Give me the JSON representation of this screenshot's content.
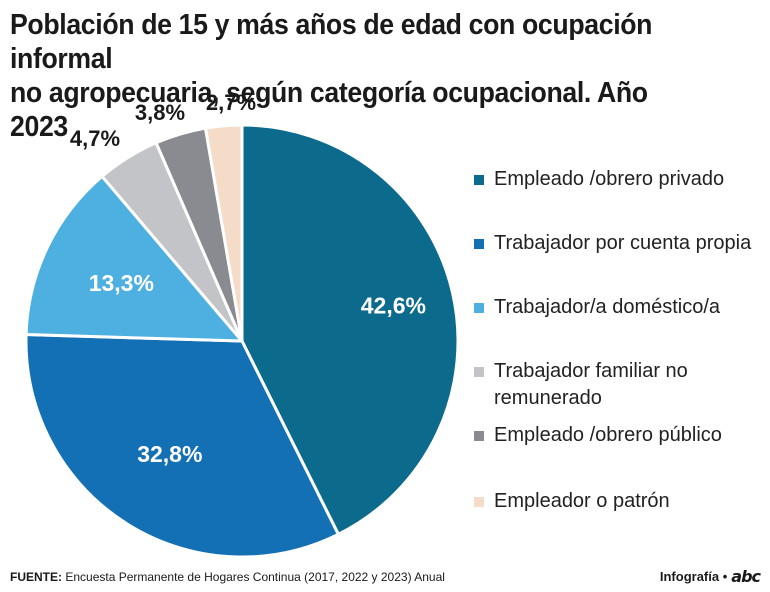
{
  "chart_data": {
    "type": "pie",
    "title_line1": "Población de 15 y más años de edad con ocupación informal",
    "title_line2": "no agropecuaria, según categoría ocupacional. Año 2023",
    "slices": [
      {
        "label": "Empleado /obrero privado",
        "value": 42.6,
        "text": "42,6%",
        "color": "#0c6a8c"
      },
      {
        "label": "Trabajador por cuenta propia",
        "value": 32.8,
        "text": "32,8%",
        "color": "#1470b4"
      },
      {
        "label": "Trabajador/a doméstico/a",
        "value": 13.3,
        "text": "13,3%",
        "color": "#4eb0e0"
      },
      {
        "label": "Trabajador familiar no remunerado",
        "value": 4.7,
        "text": "4,7%",
        "color": "#c3c4c8"
      },
      {
        "label": "Empleado /obrero público",
        "value": 3.8,
        "text": "3,8%",
        "color": "#8a8b90"
      },
      {
        "label": "Empleador o patrón",
        "value": 2.7,
        "text": "2,7%",
        "color": "#f5dcc8"
      }
    ]
  },
  "legend": {
    "items": [
      {
        "line1": "Empleado /obrero privado",
        "line2": ""
      },
      {
        "line1": "Trabajador por cuenta propia",
        "line2": ""
      },
      {
        "line1": "Trabajador/a doméstico/a",
        "line2": ""
      },
      {
        "line1": "Trabajador familiar no",
        "line2": "remunerado"
      },
      {
        "line1": "Empleado /obrero público",
        "line2": ""
      },
      {
        "line1": "Empleador o patrón",
        "line2": ""
      }
    ]
  },
  "footer": {
    "source_label": "FUENTE:",
    "source_text": "Encuesta Permanente de Hogares Continua (2017, 2022 y 2023) Anual",
    "credit": "Infografía •",
    "logo": "abc"
  }
}
